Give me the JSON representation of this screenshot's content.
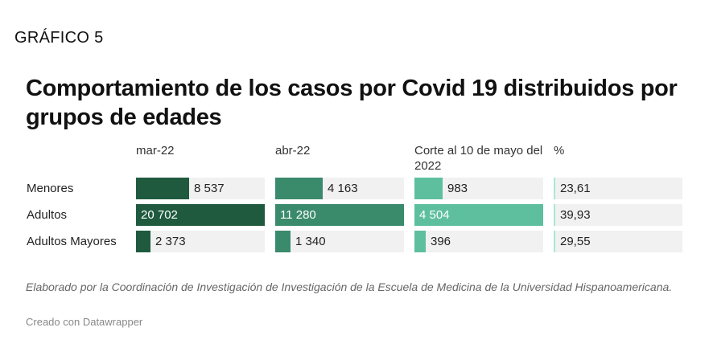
{
  "header": {
    "label": "GRÁFICO 5",
    "title": "Comportamiento de los casos por Covid 19 distribuidos por grupos de edades"
  },
  "chart_data": {
    "type": "table",
    "columns": [
      {
        "name": "mar-22",
        "color": "#1f5a3f",
        "max": 20702
      },
      {
        "name": "abr-22",
        "color": "#3a8a6c",
        "max": 11280
      },
      {
        "name": "Corte al 10 de mayo del 2022",
        "color": "#5dbf9e",
        "max": 4504
      },
      {
        "name": "%",
        "color": "#a8e8d4",
        "max": 100
      }
    ],
    "rows": [
      {
        "label": "Menores",
        "values": [
          8537,
          4163,
          983,
          23.61
        ],
        "display": [
          "8 537",
          "4 163",
          "983",
          "23,61"
        ]
      },
      {
        "label": "Adultos",
        "values": [
          20702,
          11280,
          4504,
          39.93
        ],
        "display": [
          "20 702",
          "11 280",
          "4 504",
          "39,93"
        ]
      },
      {
        "label": "Adultos Mayores",
        "values": [
          2373,
          1340,
          396,
          29.55
        ],
        "display": [
          "2 373",
          "1 340",
          "396",
          "29,55"
        ]
      }
    ]
  },
  "footer": {
    "note": "Elaborado por la Coordinación de Investigación de Investigación de la Escuela de Medicina de la Universidad Hispanoamericana.",
    "credit": "Creado con Datawrapper"
  }
}
